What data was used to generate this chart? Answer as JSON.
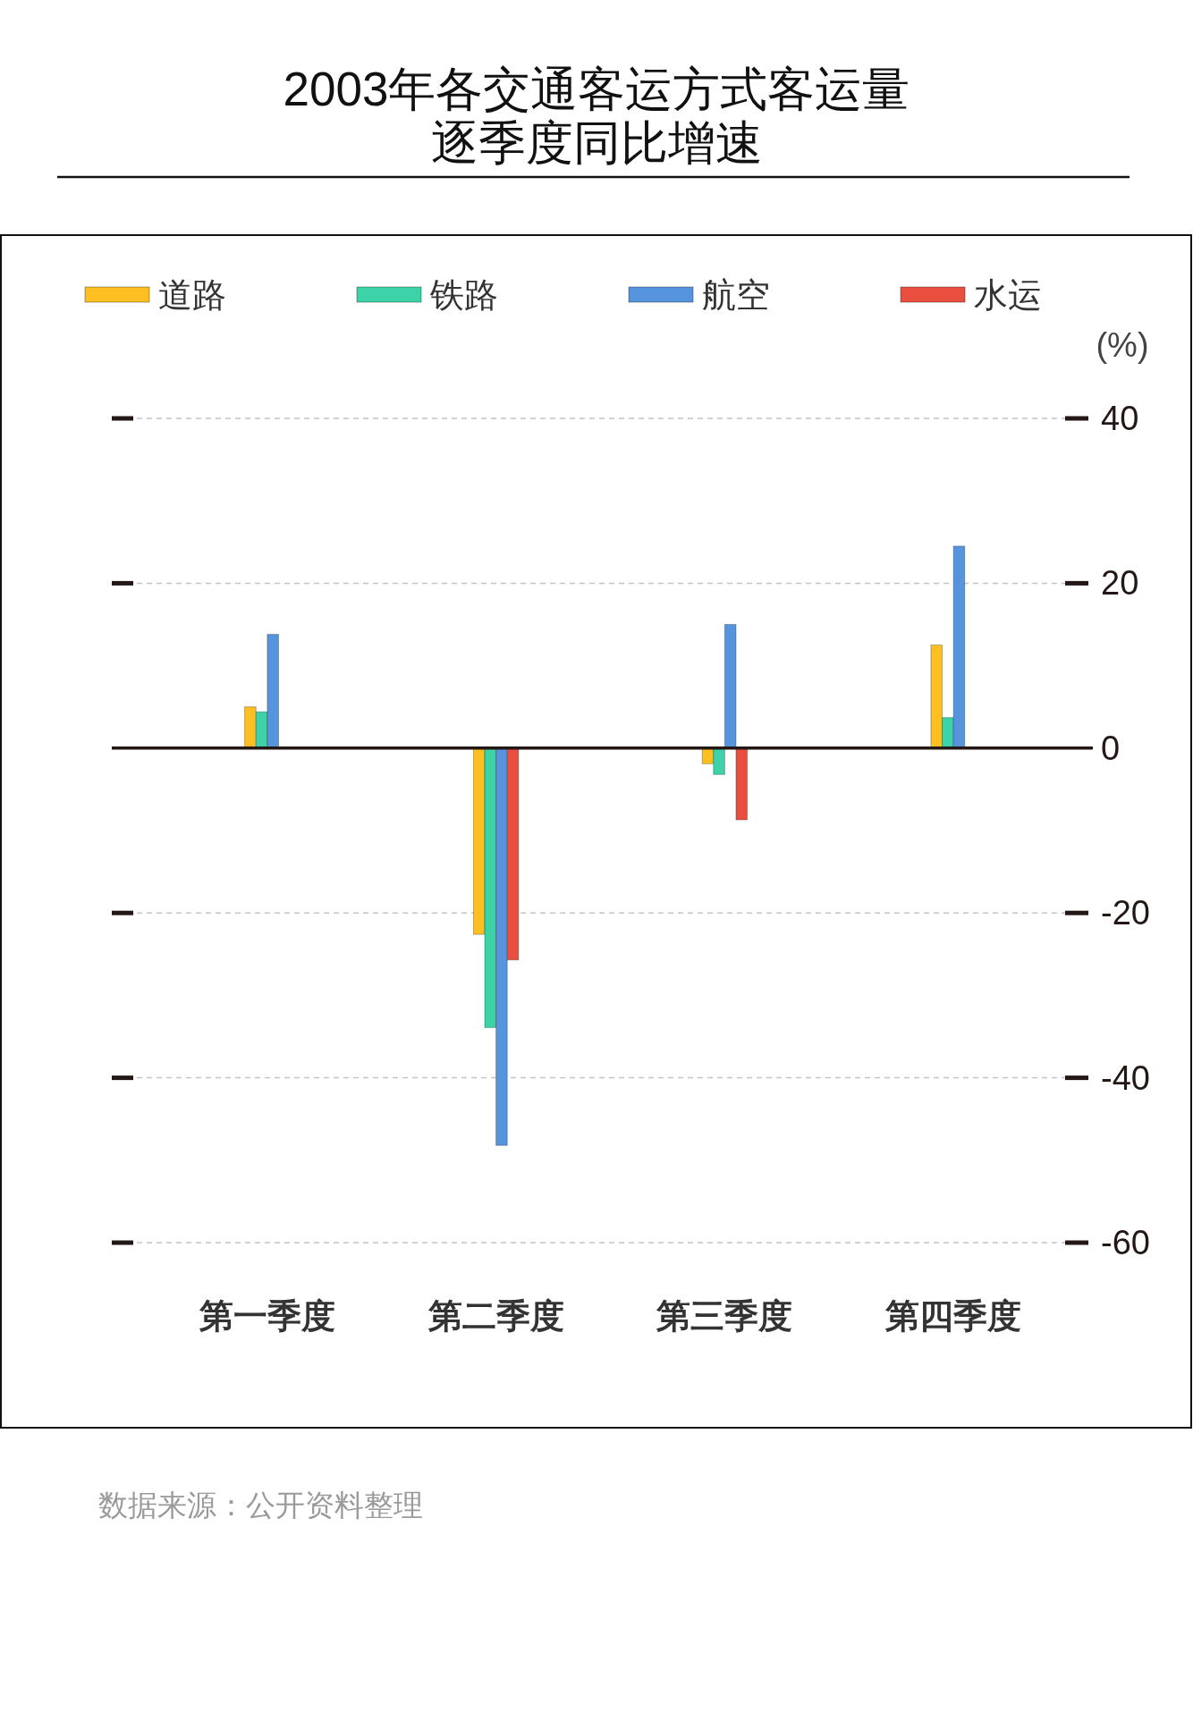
{
  "chart_data": {
    "type": "bar",
    "title": "2003年各交通客运方式客运量逐季度同比增速",
    "ylabel": "(%)",
    "categories": [
      "第一季度",
      "第二季度",
      "第三季度",
      "第四季度"
    ],
    "series": [
      {
        "name": "道路",
        "color": "#fdbf21",
        "values": [
          5.0,
          -22.6,
          -1.9,
          12.5
        ]
      },
      {
        "name": "铁路",
        "color": "#3dd3a9",
        "values": [
          4.4,
          -33.9,
          -3.2,
          3.7
        ]
      },
      {
        "name": "航空",
        "color": "#5694de",
        "values": [
          13.8,
          -48.2,
          15.0,
          24.5
        ]
      },
      {
        "name": "水运",
        "color": "#ea4e3f",
        "values": [
          null,
          -25.7,
          -8.7,
          null
        ]
      }
    ],
    "ylim": [
      -60,
      40
    ],
    "yticks": [
      -60,
      -40,
      -20,
      0,
      20,
      40
    ],
    "grid": "y",
    "legend": "top",
    "annotations": [
      "数据来源：公开资料整理"
    ]
  }
}
